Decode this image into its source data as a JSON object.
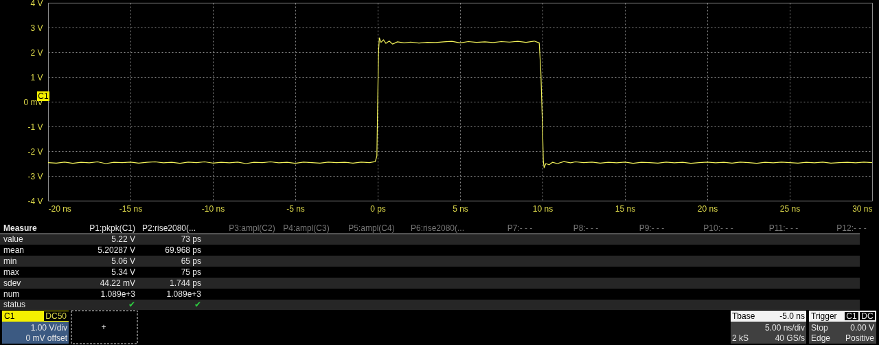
{
  "chart_data": {
    "type": "line",
    "xlim": [
      -20,
      30
    ],
    "xticks": [
      {
        "value": -20,
        "label": "-20 ns"
      },
      {
        "value": -15,
        "label": "-15 ns"
      },
      {
        "value": -10,
        "label": "-10 ns"
      },
      {
        "value": -5,
        "label": "-5 ns"
      },
      {
        "value": 0,
        "label": "0 ps"
      },
      {
        "value": 5,
        "label": "5 ns"
      },
      {
        "value": 10,
        "label": "10 ns"
      },
      {
        "value": 15,
        "label": "15 ns"
      },
      {
        "value": 20,
        "label": "20 ns"
      },
      {
        "value": 25,
        "label": "25 ns"
      },
      {
        "value": 30,
        "label": "30 ns"
      }
    ],
    "ylim": [
      -4,
      4
    ],
    "yticks": [
      {
        "value": 4,
        "label": "4 V"
      },
      {
        "value": 3,
        "label": "3 V"
      },
      {
        "value": 2,
        "label": "2 V"
      },
      {
        "value": 1,
        "label": "1 V"
      },
      {
        "value": 0,
        "label": "0 mV"
      },
      {
        "value": -1,
        "label": "-1 V"
      },
      {
        "value": -2,
        "label": "-2 V"
      },
      {
        "value": -3,
        "label": "-3 V"
      },
      {
        "value": -4,
        "label": "-4 V"
      }
    ],
    "grid": true,
    "marker": "none",
    "line_style": "solid",
    "series": [
      {
        "color": "#f2f25a",
        "x": [
          -20,
          -19.5,
          -19,
          -18.5,
          -18,
          -17.5,
          -17,
          -16.5,
          -16,
          -15.5,
          -15,
          -14.5,
          -14,
          -13.5,
          -13,
          -12.5,
          -12,
          -11.5,
          -11,
          -10.5,
          -10,
          -9.5,
          -9,
          -8.5,
          -8,
          -7.5,
          -7,
          -6.5,
          -6,
          -5.5,
          -5,
          -4.5,
          -4,
          -3.5,
          -3,
          -2.5,
          -2,
          -1.5,
          -1,
          -0.5,
          -0.15,
          -0.05,
          0,
          0.05,
          0.1,
          0.2,
          0.35,
          0.5,
          0.7,
          0.9,
          1.2,
          1.6,
          2,
          2.5,
          3,
          3.5,
          4,
          4.5,
          5,
          5.5,
          6,
          6.5,
          7,
          7.5,
          8,
          8.5,
          9,
          9.5,
          9.8,
          9.9,
          10,
          10.05,
          10.1,
          10.2,
          10.4,
          10.6,
          10.9,
          11.3,
          11.7,
          12,
          12.5,
          13,
          13.5,
          14,
          14.5,
          15,
          15.5,
          16,
          16.5,
          17,
          17.5,
          18,
          18.5,
          19,
          19.5,
          20,
          20.5,
          21,
          21.5,
          22,
          22.5,
          23,
          23.5,
          24,
          24.5,
          25,
          25.5,
          26,
          26.5,
          27,
          27.5,
          28,
          28.5,
          29,
          29.5,
          30
        ],
        "values": [
          -2.46,
          -2.48,
          -2.44,
          -2.49,
          -2.45,
          -2.47,
          -2.43,
          -2.5,
          -2.45,
          -2.46,
          -2.44,
          -2.48,
          -2.45,
          -2.43,
          -2.47,
          -2.45,
          -2.49,
          -2.44,
          -2.46,
          -2.43,
          -2.48,
          -2.45,
          -2.47,
          -2.44,
          -2.5,
          -2.45,
          -2.46,
          -2.43,
          -2.47,
          -2.45,
          -2.49,
          -2.44,
          -2.46,
          -2.48,
          -2.44,
          -2.46,
          -2.45,
          -2.48,
          -2.44,
          -2.46,
          -2.42,
          -2.2,
          0,
          2.0,
          2.58,
          2.4,
          2.5,
          2.36,
          2.45,
          2.33,
          2.42,
          2.38,
          2.41,
          2.37,
          2.4,
          2.39,
          2.42,
          2.44,
          2.38,
          2.43,
          2.4,
          2.42,
          2.39,
          2.43,
          2.41,
          2.44,
          2.4,
          2.45,
          2.38,
          1.2,
          -1.0,
          -2.4,
          -2.67,
          -2.5,
          -2.55,
          -2.45,
          -2.5,
          -2.42,
          -2.47,
          -2.43,
          -2.46,
          -2.44,
          -2.48,
          -2.45,
          -2.47,
          -2.44,
          -2.49,
          -2.45,
          -2.46,
          -2.48,
          -2.44,
          -2.47,
          -2.45,
          -2.49,
          -2.46,
          -2.44,
          -2.47,
          -2.45,
          -2.48,
          -2.44,
          -2.46,
          -2.49,
          -2.45,
          -2.47,
          -2.44,
          -2.46,
          -2.48,
          -2.45,
          -2.47,
          -2.44,
          -2.48,
          -2.46,
          -2.45,
          -2.47,
          -2.44,
          -2.46
        ]
      }
    ],
    "annotations": [
      "Measure",
      "P1:pkpk(C1)",
      "P2:rise2080(...",
      "value",
      "5.22 V",
      "73 ps",
      "mean",
      "5.20287 V",
      "69.968 ps",
      "min",
      "5.06 V",
      "65 ps",
      "max",
      "5.34 V",
      "75 ps",
      "sdev",
      "44.22 mV",
      "1.744 ps",
      "num",
      "1.089e+3",
      "1.089e+3",
      "status",
      "✔",
      "✔",
      "P3:ampl(C2)",
      "P4:ampl(C3)",
      "P5:ampl(C4)",
      "P6:rise2080(...",
      "P7:- - -",
      "P8:- - -",
      "P9:- - -",
      "P10:- - -",
      "P11:- - -",
      "P12:- - -",
      "C1",
      "DC50",
      "1.00 V/div",
      "0 mV offset",
      "+",
      "Tbase",
      "-5.0 ns",
      "5.00 ns/div",
      "2 kS",
      "40 GS/s",
      "Trigger",
      "C1",
      "DC",
      "Stop",
      "0.00 V",
      "Edge",
      "Positive",
      "C1"
    ]
  }
}
